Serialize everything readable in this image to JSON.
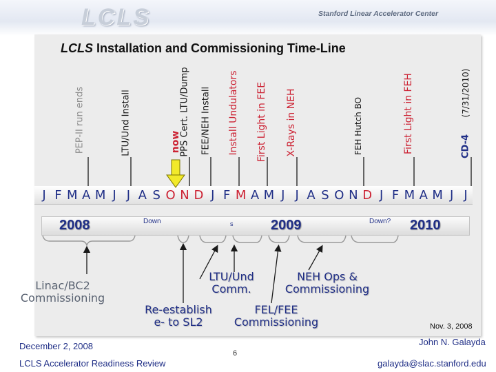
{
  "header": {
    "logo": "LCLS",
    "org": "Stanford Linear Accelerator Center"
  },
  "title": {
    "italic": "LCLS",
    "rest": " Installation and Commissioning Time-Line"
  },
  "milestones": [
    {
      "label": "PEP-II run ends",
      "color": "#8c8c8c"
    },
    {
      "label": "LTU/Und Install",
      "color": "#1a1a1a"
    },
    {
      "label": "now",
      "color": "#cc2233"
    },
    {
      "label": "PPS Cert. LTU/Dump",
      "color": "#1a1a1a"
    },
    {
      "label": "FEE/NEH  Install",
      "color": "#1a1a1a"
    },
    {
      "label": "Install Undulators",
      "color": "#cc2233"
    },
    {
      "label": "First Light in FEE",
      "color": "#cc2233"
    },
    {
      "label": "X-Rays in NEH",
      "color": "#cc2233"
    },
    {
      "label": "FEH Hutch BO",
      "color": "#1a1a1a"
    },
    {
      "label": "First Light in FEH",
      "color": "#cc2233"
    },
    {
      "label": "CD-4",
      "color": "#1f2e86"
    },
    {
      "label": "(7/31/2010)",
      "color": "#1a1a1a"
    }
  ],
  "timeline": {
    "months": [
      "J",
      "F",
      "M",
      "A",
      "M",
      "J",
      "J",
      "A",
      "S",
      "O",
      "N",
      "D",
      "J",
      "F",
      "M",
      "A",
      "M",
      "J",
      "J",
      "A",
      "S",
      "O",
      "N",
      "D",
      "J",
      "F",
      "M",
      "A",
      "M",
      "J",
      "J"
    ],
    "month_colors": {
      "default": "#1f2e86",
      "highlight": "#cc2233"
    },
    "years": [
      "2008",
      "2009",
      "2010"
    ],
    "down_labels": [
      "Down",
      "Down?"
    ],
    "small_mark": "s"
  },
  "annotations": {
    "linac": [
      "Linac/BC2",
      "Commissioning"
    ],
    "reestablish": [
      "Re-establish",
      "e- to SL2"
    ],
    "ltu": [
      "LTU/Und",
      "Comm."
    ],
    "neh": [
      "NEH Ops &",
      "Commissioning"
    ],
    "fel": [
      "FEL/FEE",
      "Commissioning"
    ],
    "date_note": "Nov. 3, 2008"
  },
  "footer": {
    "date": "December 2, 2008",
    "review": "LCLS Accelerator Readiness Review",
    "page": "6",
    "author": "John N. Galayda",
    "email": "galayda@slac.stanford.edu"
  }
}
